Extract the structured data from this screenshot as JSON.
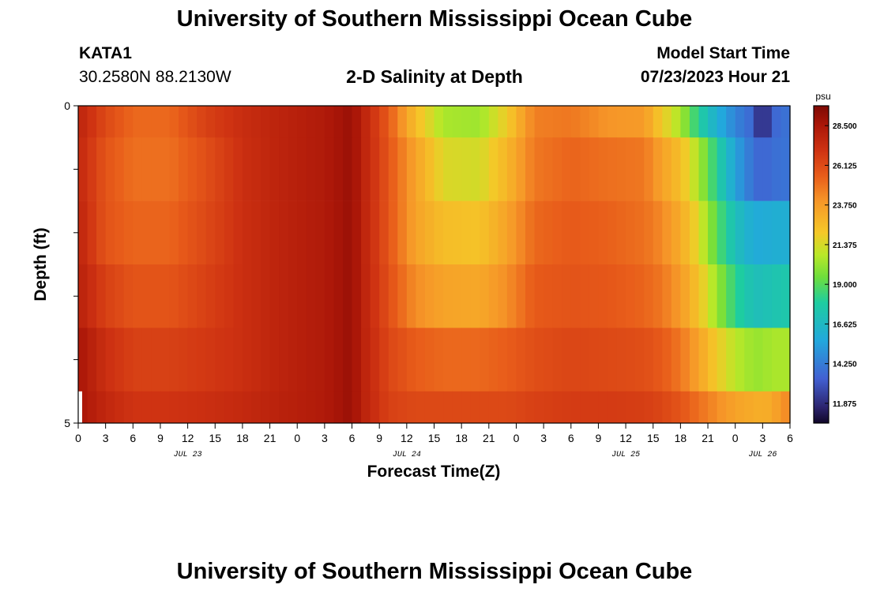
{
  "header": {
    "title": "University of Southern Mississippi Ocean Cube",
    "station": "KATA1",
    "coords": "30.2580N  88.2130W",
    "subtitle": "2-D Salinity at Depth",
    "model_start_label": "Model Start Time",
    "model_start_value": "07/23/2023 Hour 21"
  },
  "footer": {
    "title": "University of Southern Mississippi Ocean Cube"
  },
  "chart_data": {
    "type": "heatmap",
    "title": "2-D Salinity at Depth",
    "xlabel": "Forecast Time(Z)",
    "ylabel": "Depth (ft)",
    "y_tick_labels": [
      "0",
      "5"
    ],
    "ylim": [
      5,
      0
    ],
    "x_tick_labels": [
      "0",
      "3",
      "6",
      "9",
      "12",
      "15",
      "18",
      "21",
      "0",
      "3",
      "6",
      "9",
      "12",
      "15",
      "18",
      "21",
      "0",
      "3",
      "6",
      "9",
      "12",
      "15",
      "18",
      "21",
      "0",
      "3",
      "6"
    ],
    "x_hours": [
      0,
      78
    ],
    "date_labels": [
      {
        "label": "JUL 23",
        "hour": 12
      },
      {
        "label": "JUL 24",
        "hour": 36
      },
      {
        "label": "JUL 25",
        "hour": 60
      },
      {
        "label": "JUL 26",
        "hour": 75
      }
    ],
    "colorbar": {
      "unit": "psu",
      "min": 10.69,
      "max": 29.69,
      "ticks": [
        "28.500",
        "26.125",
        "23.750",
        "21.375",
        "19.000",
        "16.625",
        "14.250",
        "11.875"
      ],
      "tick_values": [
        28.5,
        26.125,
        23.75,
        21.375,
        19.0,
        16.625,
        14.25,
        11.875
      ]
    },
    "depth_layers": [
      "0-0.5",
      "0.5-1.5",
      "1.5-2.5",
      "2.5-3.5",
      "3.5-4.5",
      "4.5-5"
    ],
    "time_knots": [
      0,
      3,
      6,
      10,
      14,
      18,
      22,
      27,
      30,
      31,
      34,
      37,
      40,
      44,
      47,
      50,
      54,
      58,
      62,
      64,
      66,
      68,
      70,
      72,
      74,
      75,
      76,
      78
    ],
    "salinity_layers": [
      [
        27.8,
        26.2,
        25.2,
        25.2,
        26.5,
        27.3,
        27.8,
        28.3,
        29.0,
        28.0,
        25.6,
        22.5,
        20.5,
        20.3,
        22.0,
        24.6,
        24.8,
        24.0,
        23.8,
        22.0,
        20.5,
        18.0,
        16.0,
        14.5,
        13.5,
        11.0,
        13.5,
        14.0
      ],
      [
        27.6,
        25.8,
        25.0,
        25.0,
        26.0,
        27.2,
        27.8,
        28.3,
        29.0,
        28.0,
        25.8,
        23.5,
        21.5,
        21.3,
        22.8,
        24.8,
        25.3,
        25.0,
        24.8,
        23.5,
        22.5,
        20.5,
        18.0,
        15.5,
        13.8,
        13.5,
        13.8,
        14.0
      ],
      [
        27.8,
        25.8,
        25.3,
        25.3,
        26.2,
        27.2,
        27.8,
        28.3,
        29.0,
        28.0,
        25.8,
        23.5,
        22.5,
        22.3,
        23.5,
        25.2,
        25.6,
        25.4,
        25.0,
        24.3,
        23.2,
        21.5,
        19.0,
        17.0,
        15.8,
        15.8,
        16.0,
        16.0
      ],
      [
        28.0,
        26.5,
        25.8,
        25.8,
        26.5,
        27.2,
        27.8,
        28.3,
        29.0,
        28.0,
        26.0,
        24.2,
        23.5,
        23.3,
        24.2,
        25.6,
        25.8,
        25.7,
        25.3,
        24.8,
        23.8,
        22.3,
        20.2,
        18.2,
        17.0,
        17.0,
        17.3,
        17.5
      ],
      [
        28.6,
        27.2,
        26.5,
        26.5,
        26.8,
        27.2,
        27.8,
        28.3,
        29.0,
        28.0,
        26.3,
        25.5,
        25.2,
        25.2,
        25.5,
        26.0,
        26.3,
        26.2,
        26.0,
        25.6,
        24.8,
        23.5,
        22.0,
        20.8,
        20.2,
        20.2,
        20.5,
        20.5
      ],
      [
        28.6,
        27.6,
        27.0,
        27.0,
        27.2,
        27.5,
        27.9,
        28.3,
        29.0,
        28.0,
        26.5,
        26.2,
        26.2,
        26.2,
        26.2,
        26.5,
        26.7,
        26.7,
        26.6,
        26.3,
        25.8,
        25.0,
        24.2,
        23.5,
        23.2,
        23.0,
        23.3,
        24.5
      ]
    ]
  }
}
